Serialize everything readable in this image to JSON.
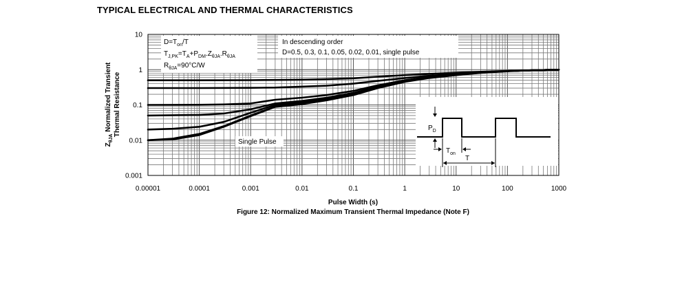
{
  "section_title": "TYPICAL ELECTRICAL AND THERMAL CHARACTERISTICS",
  "chart_data": {
    "type": "line",
    "x_scale": "log",
    "y_scale": "log",
    "xlabel": "Pulse Width (s)",
    "ylabel_line1": "Z",
    "ylabel_sub": "θJA",
    "ylabel_line1_rest": " Normalized Transient",
    "ylabel_line2": "Thermal Resistance",
    "xlim": [
      1e-05,
      1000
    ],
    "ylim": [
      0.001,
      10
    ],
    "x_ticks": [
      "0.00001",
      "0.0001",
      "0.001",
      "0.01",
      "0.1",
      "1",
      "10",
      "100",
      "1000"
    ],
    "y_ticks": [
      "0.001",
      "0.01",
      "0.1",
      "1",
      "10"
    ],
    "grid": true,
    "caption": "Figure 12: Normalized Maximum Transient Thermal Impedance (Note F)",
    "note_left": {
      "line1_main": "D=T",
      "line1_sub": "on",
      "line1_end": "/T",
      "line2_a": "T",
      "line2_a_sub": "J,PK",
      "line2_b": "=T",
      "line2_b_sub": "A",
      "line2_c": "+P",
      "line2_c_sub": "DM",
      "line2_d": ".Z",
      "line2_d_sub": "θJA",
      "line2_e": ".R",
      "line2_e_sub": "θJA",
      "line3_main": "R",
      "line3_sub": "θJA",
      "line3_end": "=90°C/W"
    },
    "note_right": {
      "line1": "In descending order",
      "line2": "D=0.5, 0.3, 0.1, 0.05, 0.02, 0.01, single pulse"
    },
    "single_pulse_label": "Single Pulse",
    "inset": {
      "pd_main": "P",
      "pd_sub": "D",
      "ton_main": "T",
      "ton_sub": "on",
      "t_label": "T"
    },
    "series": [
      {
        "duty": 0.5,
        "x": [
          1e-05,
          0.0001,
          0.001,
          0.003,
          0.01,
          0.03,
          0.1,
          0.3,
          1,
          3,
          10,
          30,
          100,
          300,
          1000
        ],
        "y": [
          0.5,
          0.5,
          0.505,
          0.51,
          0.52,
          0.54,
          0.57,
          0.63,
          0.7,
          0.76,
          0.82,
          0.87,
          0.92,
          0.96,
          1.0
        ]
      },
      {
        "duty": 0.3,
        "x": [
          1e-05,
          0.0001,
          0.001,
          0.003,
          0.01,
          0.03,
          0.1,
          0.3,
          1,
          3,
          10,
          30,
          100,
          300,
          1000
        ],
        "y": [
          0.3,
          0.3,
          0.305,
          0.31,
          0.33,
          0.35,
          0.4,
          0.48,
          0.58,
          0.67,
          0.76,
          0.84,
          0.91,
          0.96,
          1.0
        ]
      },
      {
        "duty": 0.1,
        "x": [
          1e-05,
          0.0001,
          0.0003,
          0.001,
          0.003,
          0.01,
          0.03,
          0.1,
          0.3,
          1,
          3,
          10,
          30,
          100,
          300,
          1000
        ],
        "y": [
          0.1,
          0.101,
          0.103,
          0.11,
          0.14,
          0.16,
          0.19,
          0.25,
          0.36,
          0.5,
          0.62,
          0.73,
          0.83,
          0.91,
          0.96,
          1.0
        ]
      },
      {
        "duty": 0.05,
        "x": [
          1e-05,
          0.0001,
          0.0003,
          0.001,
          0.003,
          0.01,
          0.03,
          0.1,
          0.3,
          1,
          3,
          10,
          30,
          100,
          300,
          1000
        ],
        "y": [
          0.05,
          0.052,
          0.057,
          0.075,
          0.11,
          0.13,
          0.16,
          0.22,
          0.33,
          0.48,
          0.6,
          0.72,
          0.82,
          0.91,
          0.96,
          1.0
        ]
      },
      {
        "duty": 0.02,
        "x": [
          1e-05,
          3e-05,
          0.0001,
          0.0003,
          0.001,
          0.003,
          0.01,
          0.03,
          0.1,
          0.3,
          1,
          3,
          10,
          30,
          100,
          300,
          1000
        ],
        "y": [
          0.02,
          0.021,
          0.024,
          0.033,
          0.06,
          0.1,
          0.12,
          0.15,
          0.21,
          0.32,
          0.47,
          0.6,
          0.72,
          0.82,
          0.91,
          0.96,
          1.0
        ]
      },
      {
        "duty": 0.01,
        "x": [
          1e-05,
          3e-05,
          0.0001,
          0.0003,
          0.001,
          0.003,
          0.01,
          0.03,
          0.1,
          0.3,
          1,
          3,
          10,
          30,
          100,
          300,
          1000
        ],
        "y": [
          0.01,
          0.011,
          0.015,
          0.025,
          0.05,
          0.09,
          0.11,
          0.14,
          0.2,
          0.31,
          0.46,
          0.59,
          0.71,
          0.82,
          0.91,
          0.96,
          1.0
        ]
      },
      {
        "duty": "single pulse",
        "x": [
          1e-05,
          3e-05,
          0.0001,
          0.0003,
          0.001,
          0.003,
          0.01,
          0.03,
          0.1,
          0.3,
          1,
          3,
          10,
          30,
          100,
          300,
          1000
        ],
        "y": [
          0.01,
          0.0105,
          0.014,
          0.024,
          0.048,
          0.088,
          0.105,
          0.135,
          0.19,
          0.3,
          0.45,
          0.58,
          0.7,
          0.81,
          0.9,
          0.96,
          1.0
        ]
      }
    ]
  }
}
